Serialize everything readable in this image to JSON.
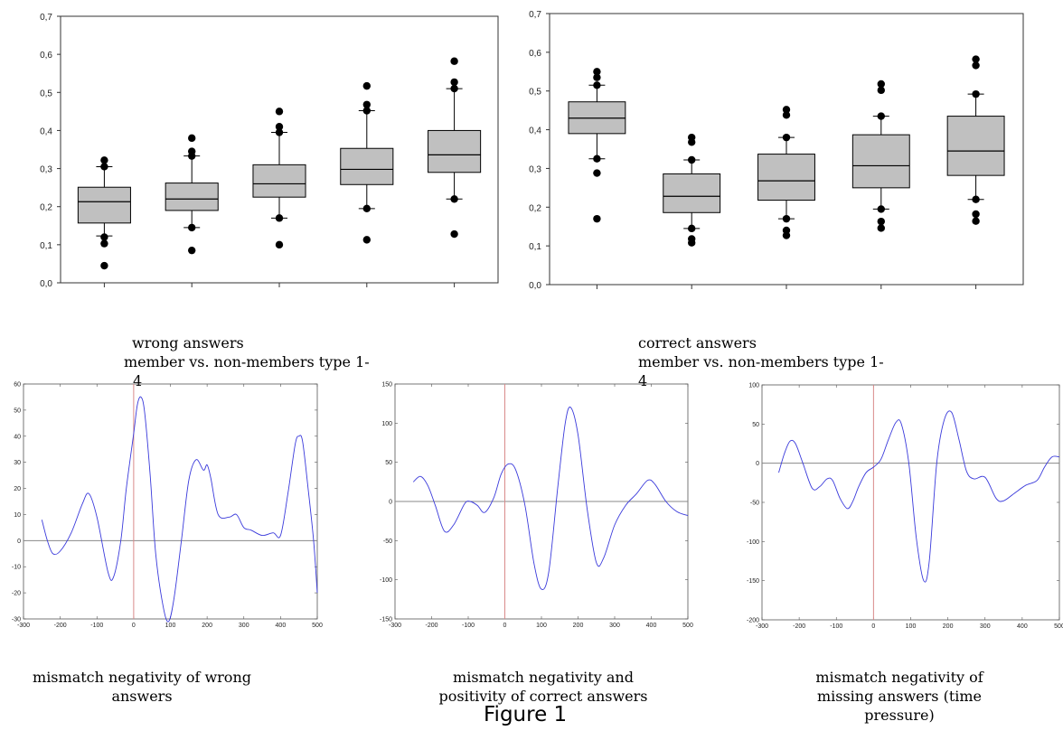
{
  "figure_title": "Figure 1",
  "captions": {
    "box_wrong": [
      "wrong answers",
      "member vs. non-members type 1-",
      "4"
    ],
    "box_correct": [
      "correct answers",
      "member vs. non-members type 1-",
      "4"
    ],
    "wave_wrong": [
      "mismatch negativity of wrong",
      "answers"
    ],
    "wave_correct": [
      "mismatch negativity and",
      "positivity of correct answers"
    ],
    "wave_missing": [
      "mismatch negativity of",
      "missing answers (time",
      "pressure)"
    ]
  },
  "chart_data": [
    {
      "type": "box",
      "id": "box_wrong",
      "title": "",
      "xlabel": "",
      "ylabel": "",
      "ylim": [
        0,
        0.7
      ],
      "yticks": [
        "0,0",
        "0,1",
        "0,2",
        "0,3",
        "0,4",
        "0,5",
        "0,6",
        "0,7"
      ],
      "frame": "full",
      "boxes": [
        {
          "q1": 0.157,
          "median": 0.213,
          "q3": 0.251,
          "whisker_low": 0.123,
          "whisker_high": 0.305,
          "outliers": [
            0.322,
            0.305,
            0.12,
            0.103,
            0.045
          ]
        },
        {
          "q1": 0.19,
          "median": 0.22,
          "q3": 0.262,
          "whisker_low": 0.145,
          "whisker_high": 0.333,
          "outliers": [
            0.38,
            0.345,
            0.333,
            0.145,
            0.085
          ]
        },
        {
          "q1": 0.225,
          "median": 0.26,
          "q3": 0.31,
          "whisker_low": 0.17,
          "whisker_high": 0.395,
          "outliers": [
            0.45,
            0.41,
            0.395,
            0.17,
            0.1
          ]
        },
        {
          "q1": 0.258,
          "median": 0.298,
          "q3": 0.353,
          "whisker_low": 0.195,
          "whisker_high": 0.452,
          "outliers": [
            0.517,
            0.468,
            0.452,
            0.195,
            0.113
          ]
        },
        {
          "q1": 0.29,
          "median": 0.336,
          "q3": 0.4,
          "whisker_low": 0.22,
          "whisker_high": 0.51,
          "outliers": [
            0.582,
            0.527,
            0.51,
            0.22,
            0.128
          ]
        }
      ]
    },
    {
      "type": "box",
      "id": "box_correct",
      "title": "",
      "xlabel": "",
      "ylabel": "",
      "ylim": [
        0,
        0.7
      ],
      "yticks": [
        "0,0",
        "0,1",
        "0,2",
        "0,3",
        "0,4",
        "0,5",
        "0,6",
        "0,7"
      ],
      "frame": "top-right-bottom",
      "boxes": [
        {
          "q1": 0.39,
          "median": 0.43,
          "q3": 0.472,
          "whisker_low": 0.325,
          "whisker_high": 0.515,
          "outliers": [
            0.55,
            0.535,
            0.515,
            0.325,
            0.288,
            0.17
          ]
        },
        {
          "q1": 0.186,
          "median": 0.228,
          "q3": 0.286,
          "whisker_low": 0.145,
          "whisker_high": 0.322,
          "outliers": [
            0.38,
            0.368,
            0.322,
            0.145,
            0.118,
            0.108
          ]
        },
        {
          "q1": 0.218,
          "median": 0.268,
          "q3": 0.337,
          "whisker_low": 0.17,
          "whisker_high": 0.38,
          "outliers": [
            0.452,
            0.438,
            0.38,
            0.17,
            0.14,
            0.127
          ]
        },
        {
          "q1": 0.25,
          "median": 0.307,
          "q3": 0.387,
          "whisker_low": 0.195,
          "whisker_high": 0.435,
          "outliers": [
            0.518,
            0.502,
            0.435,
            0.195,
            0.163,
            0.146
          ]
        },
        {
          "q1": 0.282,
          "median": 0.345,
          "q3": 0.435,
          "whisker_low": 0.22,
          "whisker_high": 0.492,
          "outliers": [
            0.582,
            0.566,
            0.492,
            0.22,
            0.182,
            0.164
          ]
        }
      ]
    },
    {
      "type": "line",
      "id": "wave_wrong",
      "title": "",
      "xlabel": "",
      "ylabel": "",
      "xlim": [
        -300,
        500
      ],
      "ylim": [
        -30,
        60
      ],
      "xticks": [
        "-300",
        "-200",
        "-100",
        "0",
        "100",
        "200",
        "300",
        "400",
        "500"
      ],
      "yticks": [
        "-30",
        "-20",
        "-10",
        "0",
        "10",
        "20",
        "30",
        "40",
        "50",
        "60"
      ],
      "zero_line": 0,
      "marker_x": 0,
      "series": [
        {
          "color": "#3a3adb",
          "x": [
            -250,
            -235,
            -220,
            -200,
            -170,
            -140,
            -122,
            -100,
            -70,
            -55,
            -35,
            -20,
            0,
            10,
            20,
            30,
            45,
            60,
            80,
            95,
            110,
            130,
            150,
            170,
            190,
            200,
            210,
            230,
            260,
            280,
            300,
            320,
            350,
            380,
            400,
            420,
            440,
            450,
            460,
            475,
            490,
            500
          ],
          "y": [
            8,
            0,
            -5,
            -4,
            3,
            14,
            18,
            9,
            -12,
            -14,
            0,
            20,
            41,
            52,
            55,
            49,
            25,
            -5,
            -25,
            -31,
            -22,
            0,
            23,
            31,
            27,
            29,
            24,
            10,
            9,
            10,
            5,
            4,
            2,
            3,
            2,
            18,
            37,
            40,
            38,
            20,
            0,
            -20
          ]
        }
      ]
    },
    {
      "type": "line",
      "id": "wave_correct",
      "title": "",
      "xlabel": "",
      "ylabel": "",
      "xlim": [
        -300,
        500
      ],
      "ylim": [
        -150,
        150
      ],
      "xticks": [
        "-300",
        "-200",
        "-100",
        "0",
        "100",
        "200",
        "300",
        "400",
        "500"
      ],
      "yticks": [
        "-150",
        "-100",
        "-50",
        "0",
        "50",
        "100",
        "150"
      ],
      "zero_line": 0,
      "marker_x": 0,
      "series": [
        {
          "color": "#3a3adb",
          "x": [
            -250,
            -230,
            -210,
            -190,
            -165,
            -140,
            -110,
            -95,
            -75,
            -55,
            -30,
            -10,
            10,
            30,
            55,
            80,
            100,
            120,
            145,
            165,
            180,
            200,
            225,
            250,
            270,
            300,
            330,
            360,
            390,
            410,
            440,
            470,
            500
          ],
          "y": [
            25,
            32,
            20,
            -5,
            -38,
            -30,
            -3,
            0,
            -5,
            -14,
            5,
            35,
            48,
            40,
            -5,
            -80,
            -112,
            -90,
            20,
            100,
            120,
            85,
            -10,
            -78,
            -72,
            -30,
            -5,
            10,
            27,
            22,
            0,
            -13,
            -18
          ]
        }
      ]
    },
    {
      "type": "line",
      "id": "wave_missing",
      "title": "",
      "xlabel": "",
      "ylabel": "",
      "xlim": [
        -300,
        500
      ],
      "ylim": [
        -200,
        100
      ],
      "xticks": [
        "-300",
        "-200",
        "-100",
        "0",
        "100",
        "200",
        "300",
        "400",
        "500"
      ],
      "yticks": [
        "-200",
        "-150",
        "-100",
        "-50",
        "0",
        "50",
        "100"
      ],
      "zero_line": 0,
      "marker_x": 0,
      "series": [
        {
          "color": "#3a3adb",
          "x": [
            -255,
            -240,
            -225,
            -210,
            -190,
            -165,
            -145,
            -125,
            -110,
            -90,
            -70,
            -55,
            -40,
            -20,
            0,
            20,
            40,
            60,
            75,
            95,
            115,
            135,
            150,
            170,
            190,
            210,
            230,
            250,
            270,
            300,
            330,
            350,
            380,
            410,
            440,
            460,
            480,
            500
          ],
          "y": [
            -12,
            12,
            28,
            25,
            0,
            -32,
            -30,
            -20,
            -22,
            -45,
            -58,
            -48,
            -30,
            -12,
            -5,
            5,
            30,
            52,
            50,
            0,
            -95,
            -150,
            -125,
            0,
            55,
            65,
            30,
            -10,
            -20,
            -18,
            -45,
            -48,
            -38,
            -28,
            -22,
            -5,
            8,
            8
          ]
        }
      ]
    }
  ]
}
